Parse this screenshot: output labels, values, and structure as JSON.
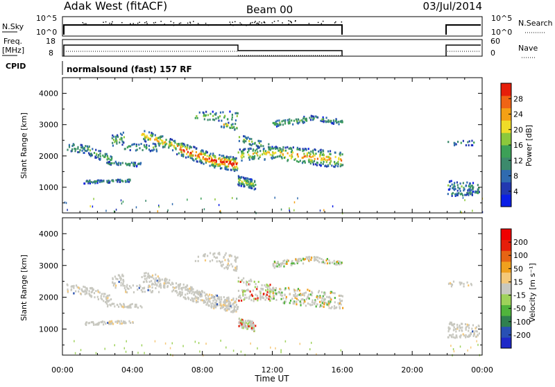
{
  "header": {
    "station": "Adak West (fitACF)",
    "beam": "Beam 00",
    "date": "03/Jul/2014"
  },
  "strip": {
    "nsky_label": "N.Sky",
    "nsky_ticks": [
      "10^5",
      "10^0"
    ],
    "nsearch_label": "N.Search",
    "nsearch_ticks": [
      "10^5",
      "10^0"
    ],
    "freq_label": "Freq.",
    "freq_unit": "[MHz]",
    "freq_ticks": [
      "18",
      "8"
    ],
    "nave_label": "Nave",
    "nave_ticks": [
      "60",
      "0"
    ],
    "cpid_label": "CPID",
    "cpid_text": "normalsound (fast) 157 RF"
  },
  "colors": {
    "power_scale": [
      "#0a1ee6",
      "#2238b0",
      "#2f6bb0",
      "#3c8a6c",
      "#3ca057",
      "#8cc83c",
      "#f0dc28",
      "#f5a014",
      "#f06414",
      "#e61e0a"
    ],
    "velocity_scale": [
      "#1e28c8",
      "#2850b4",
      "#2f8050",
      "#50b43c",
      "#9ed25a",
      "#c8c8c0",
      "#f5c878",
      "#f0a01e",
      "#e66414",
      "#e61e0a",
      "#f00000"
    ]
  },
  "chart_data": [
    {
      "type": "heatmap",
      "name": "power",
      "ylabel": "Slant Range [km]",
      "colorbar_label": "Power [dB]",
      "colorbar_ticks": [
        "28",
        "24",
        "20",
        "16",
        "12",
        "8",
        "4"
      ],
      "x_ticks": [
        "00:00",
        "04:00",
        "08:00",
        "12:00",
        "16:00",
        "20:00",
        "00:00"
      ],
      "y_ticks": [
        "1000",
        "2000",
        "3000",
        "4000"
      ],
      "xlim_hours": [
        0,
        24
      ],
      "ylim_km": [
        180,
        4500
      ],
      "data_gap_hours": [
        16,
        22
      ]
    },
    {
      "type": "heatmap",
      "name": "velocity",
      "ylabel": "Slant Range [km]",
      "colorbar_label": "Velocity [m s⁻¹]",
      "colorbar_ticks": [
        "200",
        "100",
        "50",
        "15",
        "-15",
        "-50",
        "-100",
        "-200"
      ],
      "x_ticks": [
        "00:00",
        "04:00",
        "08:00",
        "12:00",
        "16:00",
        "20:00",
        "00:00"
      ],
      "xlabel": "Time UT",
      "y_ticks": [
        "1000",
        "2000",
        "3000",
        "4000"
      ],
      "xlim_hours": [
        0,
        24
      ],
      "ylim_km": [
        180,
        4500
      ],
      "data_gap_hours": [
        16,
        22
      ]
    }
  ]
}
